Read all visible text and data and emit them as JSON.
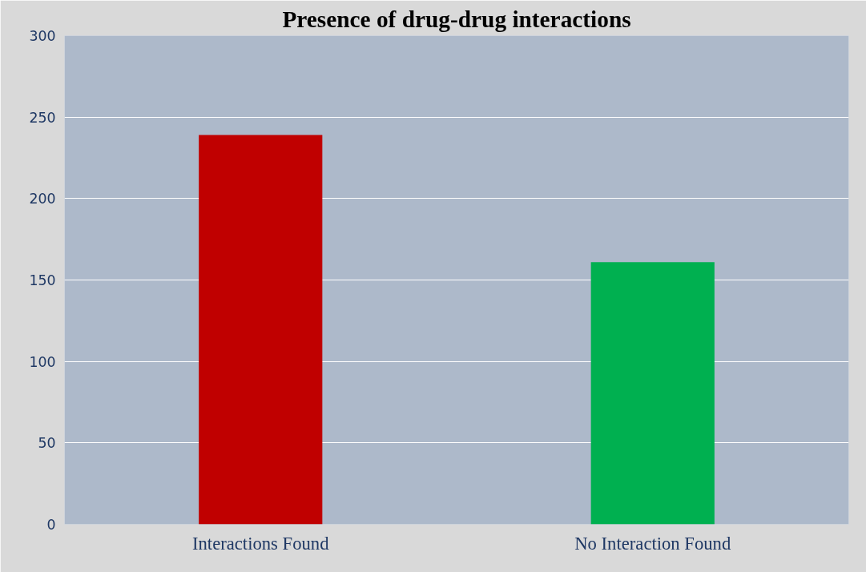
{
  "chart_data": {
    "type": "bar",
    "title": "Presence of drug-drug interactions",
    "categories": [
      "Interactions Found",
      "No Interaction Found"
    ],
    "values": [
      239,
      161
    ],
    "colors": [
      "#c00000",
      "#00b050"
    ],
    "ylim": [
      0,
      300
    ],
    "yticks": [
      0,
      50,
      100,
      150,
      200,
      250,
      300
    ],
    "grid": "y"
  }
}
